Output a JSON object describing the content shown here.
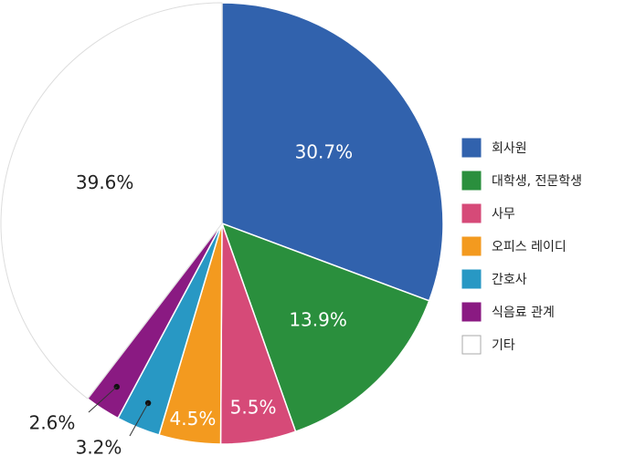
{
  "chart_data": {
    "type": "pie",
    "title": "",
    "start": "top, clockwise",
    "legend": "right",
    "slices": [
      {
        "name": "회사원",
        "value": 30.7,
        "label": "30.7%",
        "color": "#3162ad"
      },
      {
        "name": "대학생, 전문학생",
        "value": 13.9,
        "label": "13.9%",
        "color": "#2a8f3d"
      },
      {
        "name": "사무",
        "value": 5.5,
        "label": "5.5%",
        "color": "#d64a78"
      },
      {
        "name": "오피스 레이디",
        "value": 4.5,
        "label": "4.5%",
        "color": "#f39a1f"
      },
      {
        "name": "간호사",
        "value": 3.2,
        "label": "3.2%",
        "color": "#2898c4"
      },
      {
        "name": "식음료 관계",
        "value": 2.6,
        "label": "2.6%",
        "color": "#8a1a82"
      },
      {
        "name": "기타",
        "value": 39.6,
        "label": "39.6%",
        "color": "#ffffff"
      }
    ]
  }
}
